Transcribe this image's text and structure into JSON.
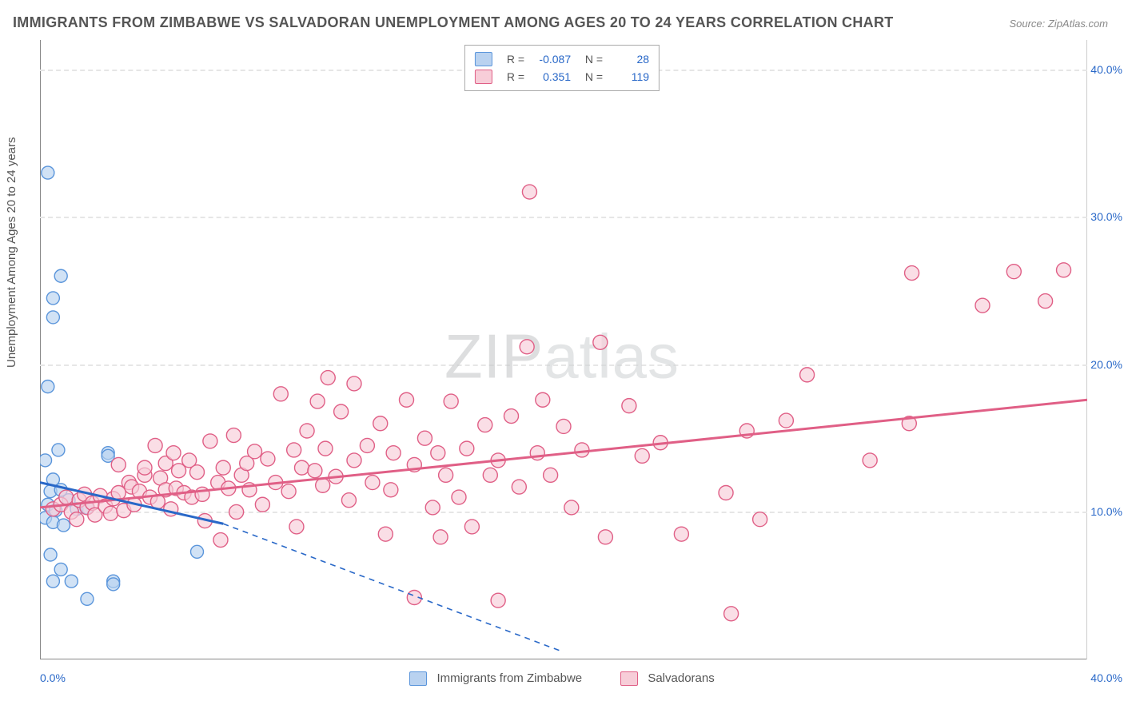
{
  "title": "IMMIGRANTS FROM ZIMBABWE VS SALVADORAN UNEMPLOYMENT AMONG AGES 20 TO 24 YEARS CORRELATION CHART",
  "source": "Source: ZipAtlas.com",
  "ylabel": "Unemployment Among Ages 20 to 24 years",
  "watermark_bold": "ZIP",
  "watermark_thin": "atlas",
  "chart": {
    "type": "scatter",
    "xlim": [
      0,
      40
    ],
    "ylim": [
      0,
      42
    ],
    "x_axis_right_tick": "40.0%",
    "x_axis_left_tick": "0.0%",
    "y_ticks": [
      10,
      20,
      30,
      40
    ],
    "y_tick_labels": [
      "10.0%",
      "20.0%",
      "30.0%",
      "40.0%"
    ],
    "background": "#ffffff",
    "grid_color": "#e6e6e6",
    "axis_color": "#888888",
    "tick_label_color": "#2968c8"
  },
  "series": [
    {
      "name": "Immigrants from Zimbabwe",
      "marker_fill": "#b9d2f0",
      "marker_stroke": "#5a95db",
      "marker_radius": 8,
      "line_color": "#2968c8",
      "trend_solid_x": [
        0,
        7
      ],
      "trend_slope_start_y": 12.0,
      "trend_slope_end_y": 9.2,
      "trend_dash_to_x": 20,
      "trend_dash_to_y": 0.5,
      "legend": {
        "R": "-0.087",
        "N": "28"
      },
      "points": [
        [
          0.3,
          33.0
        ],
        [
          0.8,
          26.0
        ],
        [
          0.5,
          24.5
        ],
        [
          0.5,
          23.2
        ],
        [
          0.3,
          18.5
        ],
        [
          0.7,
          14.2
        ],
        [
          0.2,
          13.5
        ],
        [
          0.5,
          12.2
        ],
        [
          0.4,
          11.4
        ],
        [
          0.8,
          11.5
        ],
        [
          1.1,
          10.8
        ],
        [
          0.3,
          10.5
        ],
        [
          0.6,
          10.1
        ],
        [
          1.4,
          10.2
        ],
        [
          1.8,
          10.3
        ],
        [
          0.2,
          9.6
        ],
        [
          0.5,
          9.3
        ],
        [
          0.9,
          9.1
        ],
        [
          2.6,
          14.0
        ],
        [
          2.6,
          13.8
        ],
        [
          0.4,
          7.1
        ],
        [
          0.8,
          6.1
        ],
        [
          0.5,
          5.3
        ],
        [
          1.2,
          5.3
        ],
        [
          2.8,
          5.3
        ],
        [
          2.8,
          5.1
        ],
        [
          1.8,
          4.1
        ],
        [
          6.0,
          7.3
        ]
      ]
    },
    {
      "name": "Salvadorans",
      "marker_fill": "#f7cdd8",
      "marker_stroke": "#e05f86",
      "marker_radius": 9,
      "line_color": "#e05f86",
      "trend_solid_x": [
        0,
        40
      ],
      "trend_slope_start_y": 10.3,
      "trend_slope_end_y": 17.6,
      "legend": {
        "R": "0.351",
        "N": "119"
      },
      "points": [
        [
          0.5,
          10.2
        ],
        [
          0.8,
          10.5
        ],
        [
          1.0,
          11.0
        ],
        [
          1.2,
          10.0
        ],
        [
          1.4,
          9.5
        ],
        [
          1.5,
          10.8
        ],
        [
          1.7,
          11.2
        ],
        [
          1.8,
          10.3
        ],
        [
          2.0,
          10.6
        ],
        [
          2.1,
          9.8
        ],
        [
          2.3,
          11.1
        ],
        [
          2.5,
          10.4
        ],
        [
          2.7,
          9.9
        ],
        [
          2.8,
          10.9
        ],
        [
          3.0,
          11.3
        ],
        [
          3.0,
          13.2
        ],
        [
          3.2,
          10.1
        ],
        [
          3.4,
          12.0
        ],
        [
          3.5,
          11.7
        ],
        [
          3.6,
          10.5
        ],
        [
          3.8,
          11.4
        ],
        [
          4.0,
          12.5
        ],
        [
          4.0,
          13.0
        ],
        [
          4.2,
          11.0
        ],
        [
          4.4,
          14.5
        ],
        [
          4.5,
          10.7
        ],
        [
          4.6,
          12.3
        ],
        [
          4.8,
          13.3
        ],
        [
          4.8,
          11.5
        ],
        [
          5.0,
          10.2
        ],
        [
          5.1,
          14.0
        ],
        [
          5.2,
          11.6
        ],
        [
          5.3,
          12.8
        ],
        [
          5.5,
          11.3
        ],
        [
          5.7,
          13.5
        ],
        [
          5.8,
          11.0
        ],
        [
          6.0,
          12.7
        ],
        [
          6.2,
          11.2
        ],
        [
          6.3,
          9.4
        ],
        [
          6.5,
          14.8
        ],
        [
          6.8,
          12.0
        ],
        [
          6.9,
          8.1
        ],
        [
          7.0,
          13.0
        ],
        [
          7.2,
          11.6
        ],
        [
          7.4,
          15.2
        ],
        [
          7.5,
          10.0
        ],
        [
          7.7,
          12.5
        ],
        [
          7.9,
          13.3
        ],
        [
          8.0,
          11.5
        ],
        [
          8.2,
          14.1
        ],
        [
          8.5,
          10.5
        ],
        [
          8.7,
          13.6
        ],
        [
          9.0,
          12.0
        ],
        [
          9.2,
          18.0
        ],
        [
          9.5,
          11.4
        ],
        [
          9.7,
          14.2
        ],
        [
          9.8,
          9.0
        ],
        [
          10.0,
          13.0
        ],
        [
          10.2,
          15.5
        ],
        [
          10.5,
          12.8
        ],
        [
          10.6,
          17.5
        ],
        [
          10.8,
          11.8
        ],
        [
          10.9,
          14.3
        ],
        [
          11.0,
          19.1
        ],
        [
          11.3,
          12.4
        ],
        [
          11.5,
          16.8
        ],
        [
          11.8,
          10.8
        ],
        [
          12.0,
          13.5
        ],
        [
          12.0,
          18.7
        ],
        [
          12.5,
          14.5
        ],
        [
          12.7,
          12.0
        ],
        [
          13.0,
          16.0
        ],
        [
          13.2,
          8.5
        ],
        [
          13.4,
          11.5
        ],
        [
          13.5,
          14.0
        ],
        [
          14.0,
          17.6
        ],
        [
          14.3,
          13.2
        ],
        [
          14.3,
          4.2
        ],
        [
          14.7,
          15.0
        ],
        [
          15.0,
          10.3
        ],
        [
          15.2,
          14.0
        ],
        [
          15.3,
          8.3
        ],
        [
          15.5,
          12.5
        ],
        [
          15.7,
          17.5
        ],
        [
          16.0,
          11.0
        ],
        [
          16.3,
          14.3
        ],
        [
          16.5,
          9.0
        ],
        [
          17.0,
          15.9
        ],
        [
          17.2,
          12.5
        ],
        [
          17.5,
          13.5
        ],
        [
          17.5,
          4.0
        ],
        [
          18.0,
          16.5
        ],
        [
          18.3,
          11.7
        ],
        [
          18.6,
          21.2
        ],
        [
          18.7,
          31.7
        ],
        [
          19.0,
          14.0
        ],
        [
          19.2,
          17.6
        ],
        [
          19.5,
          12.5
        ],
        [
          20.0,
          15.8
        ],
        [
          20.3,
          10.3
        ],
        [
          20.7,
          14.2
        ],
        [
          21.4,
          21.5
        ],
        [
          21.6,
          8.3
        ],
        [
          22.5,
          17.2
        ],
        [
          23.0,
          13.8
        ],
        [
          23.7,
          14.7
        ],
        [
          24.5,
          8.5
        ],
        [
          26.4,
          3.1
        ],
        [
          26.2,
          11.3
        ],
        [
          27.0,
          15.5
        ],
        [
          27.5,
          9.5
        ],
        [
          28.5,
          16.2
        ],
        [
          29.3,
          19.3
        ],
        [
          31.7,
          13.5
        ],
        [
          33.2,
          16.0
        ],
        [
          33.3,
          26.2
        ],
        [
          36.0,
          24.0
        ],
        [
          37.2,
          26.3
        ],
        [
          38.4,
          24.3
        ],
        [
          39.1,
          26.4
        ]
      ]
    }
  ],
  "bottom_legend": {
    "items": [
      {
        "label": "Immigrants from Zimbabwe",
        "fill": "#b9d2f0",
        "stroke": "#5a95db"
      },
      {
        "label": "Salvadorans",
        "fill": "#f7cdd8",
        "stroke": "#e05f86"
      }
    ]
  }
}
